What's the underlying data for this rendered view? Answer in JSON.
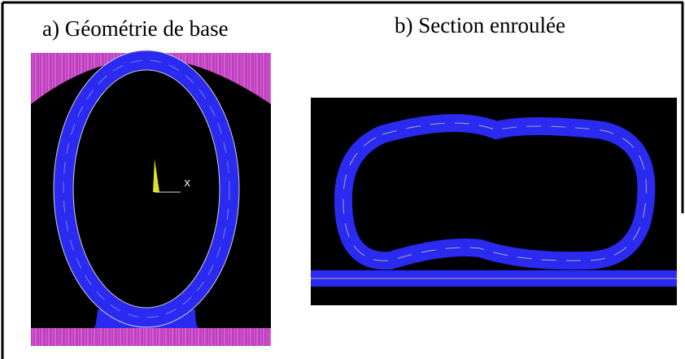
{
  "panels": [
    {
      "title": "a) Géométrie de base",
      "axis_label": "x"
    },
    {
      "title": "b) Section enroulée"
    }
  ]
}
